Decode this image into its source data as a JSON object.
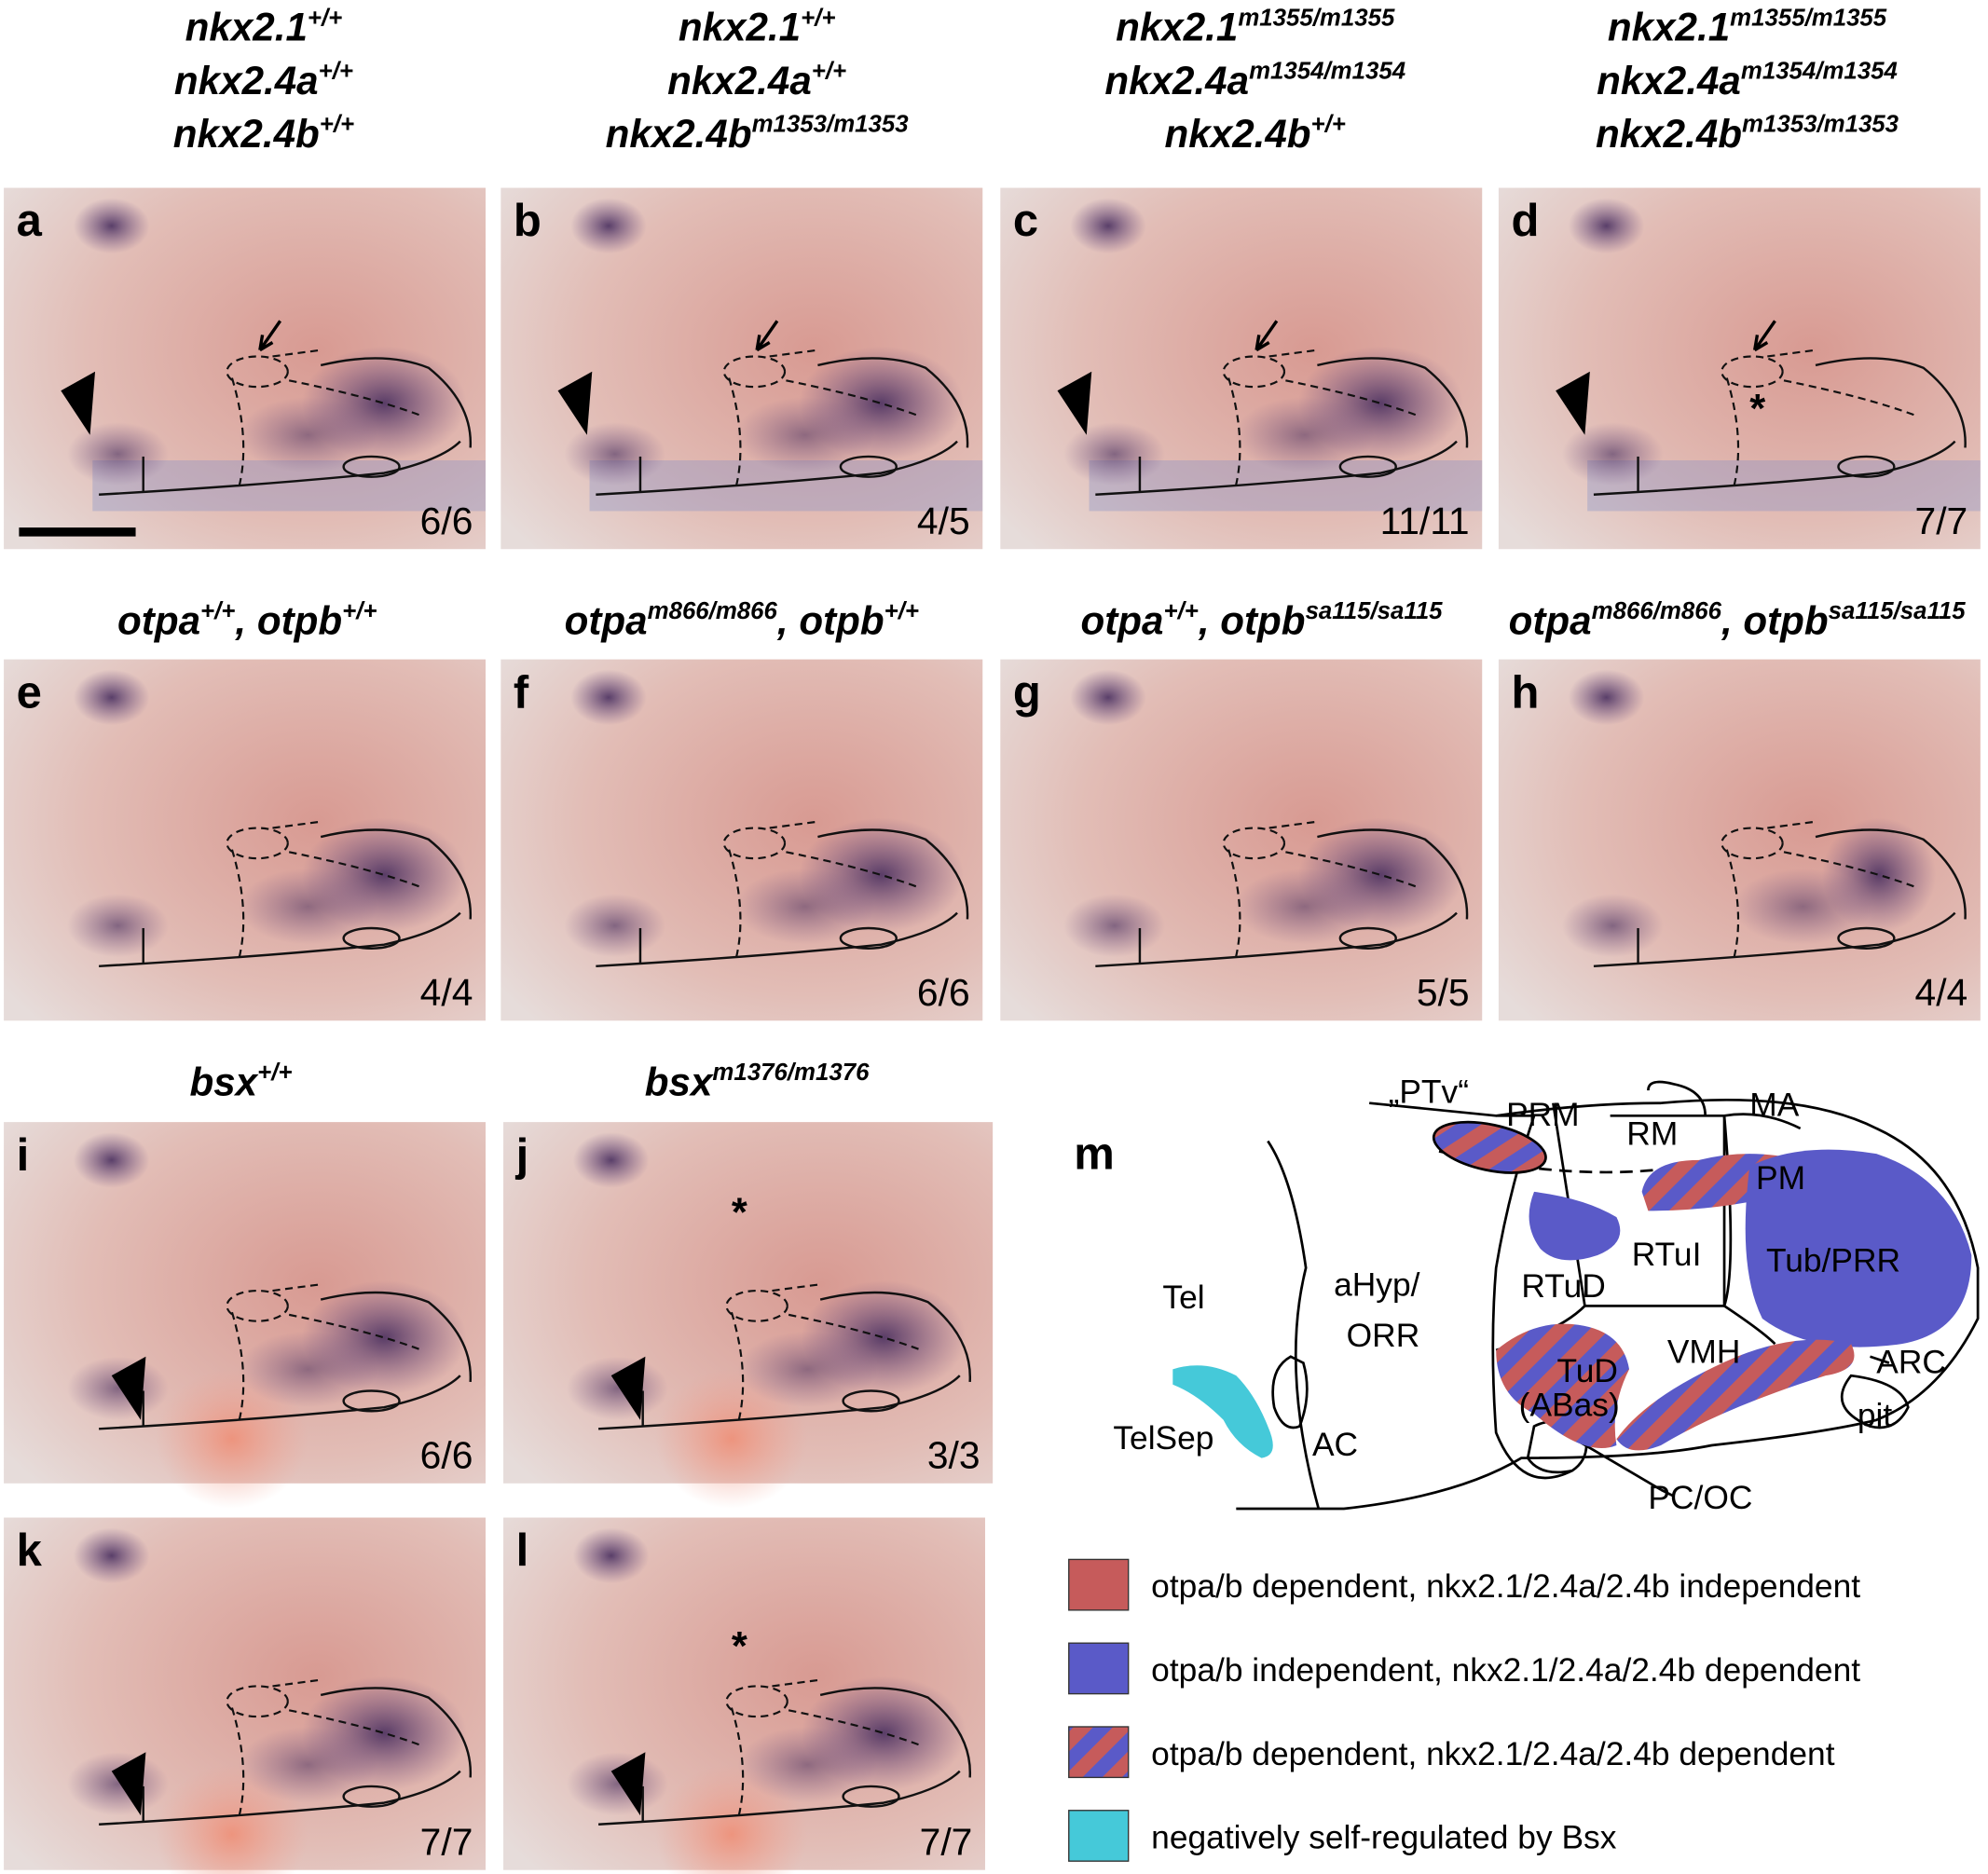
{
  "genotype_rows": [
    {
      "labels": [
        [
          [
            "nkx2.1",
            "+/+"
          ],
          [
            "nkx2.4a",
            "+/+"
          ],
          [
            "nkx2.4b",
            "+/+"
          ]
        ],
        [
          [
            "nkx2.1",
            "+/+"
          ],
          [
            "nkx2.4a",
            "+/+"
          ],
          [
            "nkx2.4b",
            "m1353/m1353"
          ]
        ],
        [
          [
            "nkx2.1",
            "m1355/m1355"
          ],
          [
            "nkx2.4a",
            "m1354/m1354"
          ],
          [
            "nkx2.4b",
            "+/+"
          ]
        ],
        [
          [
            "nkx2.1",
            "m1355/m1355"
          ],
          [
            "nkx2.4a",
            "m1354/m1354"
          ],
          [
            "nkx2.4b",
            "m1353/m1353"
          ]
        ]
      ]
    },
    {
      "labels": [
        [
          [
            "otpa",
            "+/+",
            ", otpb",
            "+/+"
          ]
        ],
        [
          [
            "otpa",
            "m866/m866",
            ", otpb",
            "+/+"
          ]
        ],
        [
          [
            "otpa",
            "+/+",
            ", otpb",
            "sa115/sa115"
          ]
        ],
        [
          [
            "otpa",
            "m866/m866",
            ", otpb",
            "sa115/sa115"
          ]
        ]
      ]
    },
    {
      "labels": [
        [
          [
            "bsx",
            "+/+"
          ]
        ],
        [
          [
            "bsx",
            "m1376/m1376"
          ]
        ]
      ]
    }
  ],
  "panels": [
    {
      "letter": "a",
      "count": "6/6"
    },
    {
      "letter": "b",
      "count": "4/5"
    },
    {
      "letter": "c",
      "count": "11/11"
    },
    {
      "letter": "d",
      "count": "7/7"
    },
    {
      "letter": "e",
      "count": "4/4"
    },
    {
      "letter": "f",
      "count": "6/6"
    },
    {
      "letter": "g",
      "count": "5/5"
    },
    {
      "letter": "h",
      "count": "4/4"
    },
    {
      "letter": "i",
      "count": "6/6"
    },
    {
      "letter": "j",
      "count": "3/3"
    },
    {
      "letter": "k",
      "count": "7/7"
    },
    {
      "letter": "l",
      "count": "7/7"
    }
  ],
  "asterisk": "*",
  "diagram": {
    "letter": "m",
    "labels": [
      "„PTv“",
      "PRM",
      "RM",
      "MA",
      "PM",
      "RTuI",
      "Tub/PRR",
      "RTuD",
      "Tel",
      "aHyp/",
      "ORR",
      "VMH",
      "ARC",
      "TuD",
      "(ABas)",
      "pit",
      "TelSep",
      "AC",
      "PC/OC"
    ],
    "legend": [
      {
        "text": "otpa/b dependent, nkx2.1/2.4a/2.4b independent",
        "color": "#c65b5b"
      },
      {
        "text": "otpa/b independent, nkx2.1/2.4a/2.4b dependent",
        "color": "#5a5ac8"
      },
      {
        "text": "otpa/b dependent, nkx2.1/2.4a/2.4b dependent",
        "color": "striped"
      },
      {
        "text": "negatively self-regulated by Bsx",
        "color": "#45c9d9"
      }
    ]
  }
}
